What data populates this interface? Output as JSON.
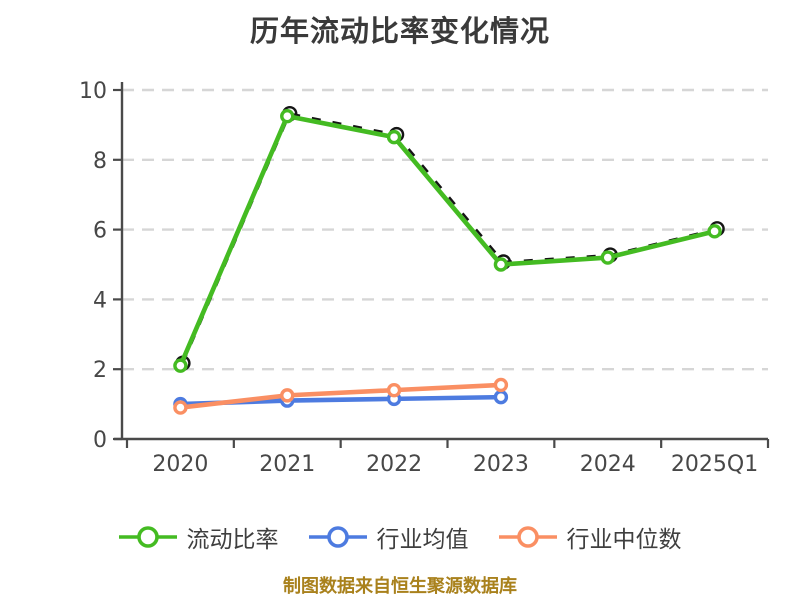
{
  "chart_data": {
    "type": "line",
    "title": "历年流动比率变化情况",
    "categories": [
      "2020",
      "2021",
      "2022",
      "2023",
      "2024",
      "2025Q1"
    ],
    "series": [
      {
        "name": "流动比率",
        "color": "#44BB22",
        "marker": "circle-white-fill",
        "values": [
          2.1,
          9.25,
          8.65,
          5.0,
          5.2,
          5.95
        ]
      },
      {
        "name": "行业均值",
        "color": "#4D7BE0",
        "marker": "circle-white-fill",
        "values": [
          1.0,
          1.1,
          1.15,
          1.2,
          null,
          null
        ]
      },
      {
        "name": "行业中位数",
        "color": "#FA8F63",
        "marker": "circle-white-fill",
        "values": [
          0.9,
          1.25,
          1.4,
          1.55,
          null,
          null
        ]
      }
    ],
    "ylim": [
      0,
      10
    ],
    "yticks": [
      0,
      2,
      4,
      6,
      8,
      10
    ],
    "xlabel": "",
    "ylabel": "",
    "grid": "horizontal-dashed",
    "legend_position": "bottom",
    "source_note": "制图数据来自恒生聚源数据库"
  },
  "style": {
    "title_color": "#3A3A3A",
    "footer_color": "#A9811C",
    "axis_color": "#4A4A4A",
    "grid_color": "#D6D6D6",
    "background": "#FFFFFF"
  }
}
